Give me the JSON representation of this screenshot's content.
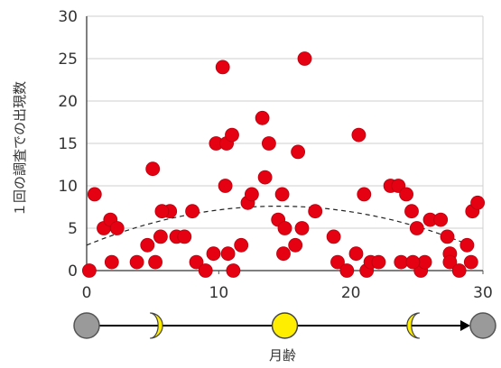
{
  "chart_data": {
    "type": "scatter",
    "title": "",
    "xlabel": "月齢",
    "ylabel": "１回の調査での出現数",
    "xlim": [
      0,
      30
    ],
    "ylim": [
      0,
      30
    ],
    "xticks": [
      "0",
      "10",
      "20",
      "30"
    ],
    "yticks": [
      "0",
      "5",
      "10",
      "15",
      "20",
      "25",
      "30"
    ],
    "grid": true,
    "series": [
      {
        "points": [
          [
            0.6,
            9
          ],
          [
            1.3,
            5
          ],
          [
            1.8,
            6
          ],
          [
            2.3,
            5
          ],
          [
            1.9,
            1
          ],
          [
            3.8,
            1
          ],
          [
            4.6,
            3
          ],
          [
            5.0,
            12
          ],
          [
            5.6,
            4
          ],
          [
            5.2,
            1
          ],
          [
            6.3,
            7
          ],
          [
            5.7,
            7
          ],
          [
            6.8,
            4
          ],
          [
            7.4,
            4
          ],
          [
            8.0,
            7
          ],
          [
            8.3,
            1
          ],
          [
            9.0,
            0
          ],
          [
            9.6,
            2
          ],
          [
            9.8,
            15
          ],
          [
            10.3,
            24
          ],
          [
            10.5,
            10
          ],
          [
            10.6,
            15
          ],
          [
            11.0,
            16
          ],
          [
            11.1,
            0
          ],
          [
            10.7,
            2
          ],
          [
            11.7,
            3
          ],
          [
            12.2,
            8
          ],
          [
            12.5,
            9
          ],
          [
            13.3,
            18
          ],
          [
            13.5,
            11
          ],
          [
            13.8,
            15
          ],
          [
            14.5,
            6
          ],
          [
            14.8,
            9
          ],
          [
            15.0,
            5
          ],
          [
            14.9,
            2
          ],
          [
            15.8,
            3
          ],
          [
            16.0,
            14
          ],
          [
            16.3,
            5
          ],
          [
            16.5,
            25
          ],
          [
            17.3,
            7
          ],
          [
            18.7,
            4
          ],
          [
            19.0,
            1
          ],
          [
            19.7,
            0
          ],
          [
            20.4,
            2
          ],
          [
            20.6,
            16
          ],
          [
            21.0,
            9
          ],
          [
            21.2,
            0
          ],
          [
            21.5,
            1
          ],
          [
            22.1,
            1
          ],
          [
            23.0,
            10
          ],
          [
            23.6,
            10
          ],
          [
            23.8,
            1
          ],
          [
            24.2,
            9
          ],
          [
            24.6,
            7
          ],
          [
            25.0,
            5
          ],
          [
            25.3,
            0
          ],
          [
            25.6,
            1
          ],
          [
            26.0,
            6
          ],
          [
            26.8,
            6
          ],
          [
            27.3,
            4
          ],
          [
            27.5,
            2
          ],
          [
            27.5,
            1
          ],
          [
            28.2,
            0
          ],
          [
            28.8,
            3
          ],
          [
            29.2,
            7
          ],
          [
            29.6,
            8
          ],
          [
            29.1,
            1
          ],
          [
            0.2,
            0
          ],
          [
            24.7,
            1
          ]
        ]
      }
    ],
    "trendline": {
      "style": "dashed",
      "x": [
        0,
        14.5,
        29
      ],
      "y": [
        3.0,
        7.6,
        3.0
      ]
    },
    "moon_phases": {
      "labels": [
        "new",
        "first-quarter",
        "full",
        "last-quarter",
        "new"
      ],
      "days": [
        0,
        5,
        15,
        25,
        30
      ]
    }
  },
  "colors": {
    "point": "#e50012",
    "gridline": "#cfcfcf",
    "axis": "#555555",
    "text": "#333333",
    "moon_full": "#ffee00",
    "moon_new": "#9a9a9a",
    "arrow": "#000000"
  }
}
